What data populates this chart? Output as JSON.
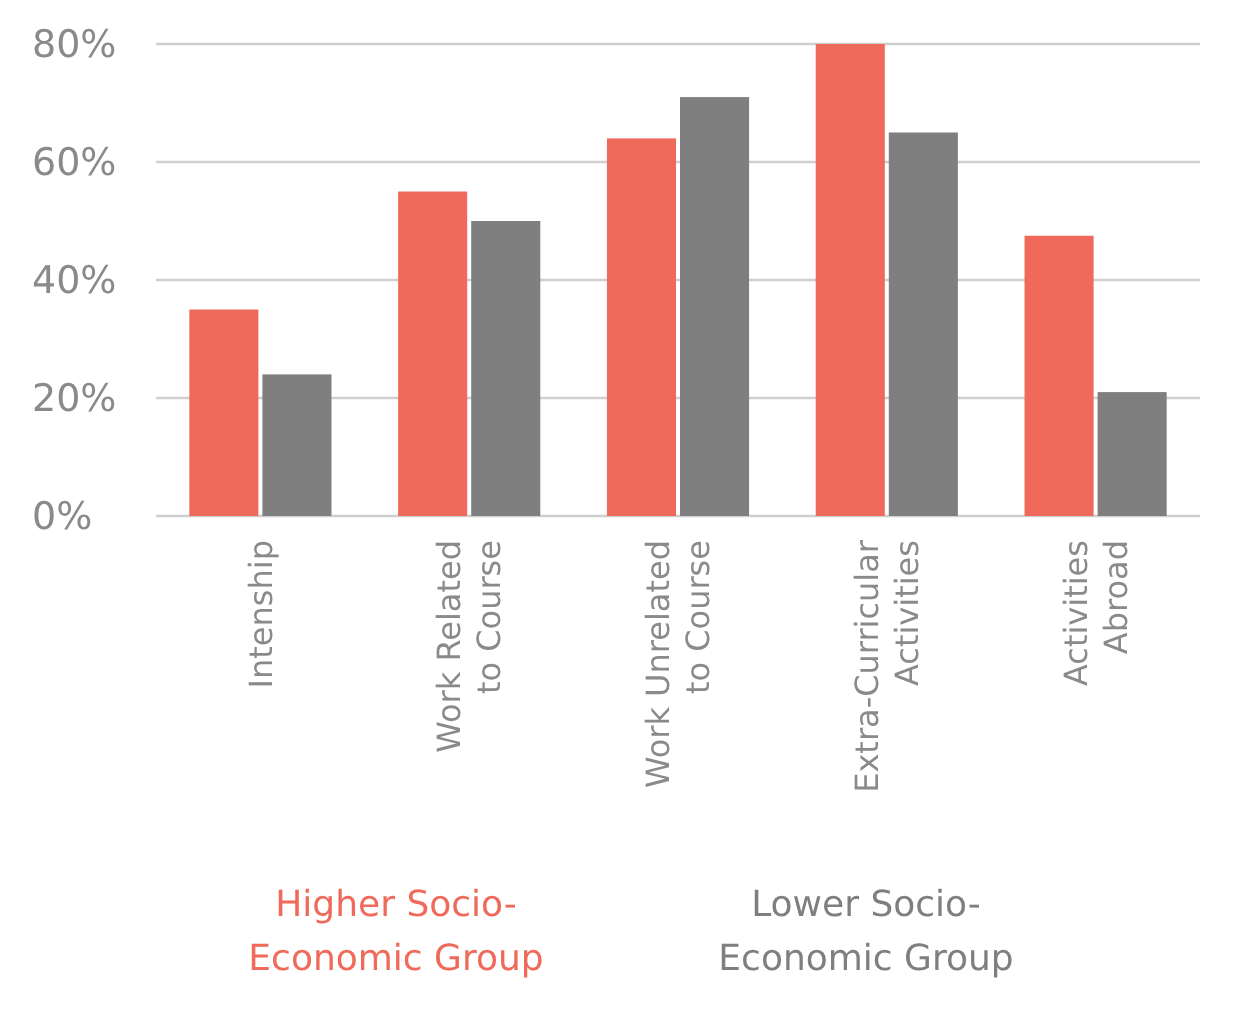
{
  "chart_data": {
    "type": "bar",
    "categories": [
      "Intenship",
      "Work Related\nto Course",
      "Work Unrelated\nto Course",
      "Extra-Curricular\nActivities",
      "Activities\nAbroad"
    ],
    "series": [
      {
        "name": "Higher Socio-\nEconomic Group",
        "color": "#ef6a5a",
        "values": [
          35,
          55,
          64,
          80,
          47.5
        ]
      },
      {
        "name": "Lower Socio-\nEconomic Group",
        "color": "#7f7f7f",
        "values": [
          24,
          50,
          71,
          65,
          21
        ]
      }
    ],
    "ylim": [
      0,
      80
    ],
    "yticks": [
      {
        "value": 0,
        "label": "0%"
      },
      {
        "value": 20,
        "label": "20%"
      },
      {
        "value": 40,
        "label": "40%"
      },
      {
        "value": 60,
        "label": "60%"
      },
      {
        "value": 80,
        "label": "80%"
      }
    ],
    "grid": "y",
    "legend": "bottom"
  }
}
